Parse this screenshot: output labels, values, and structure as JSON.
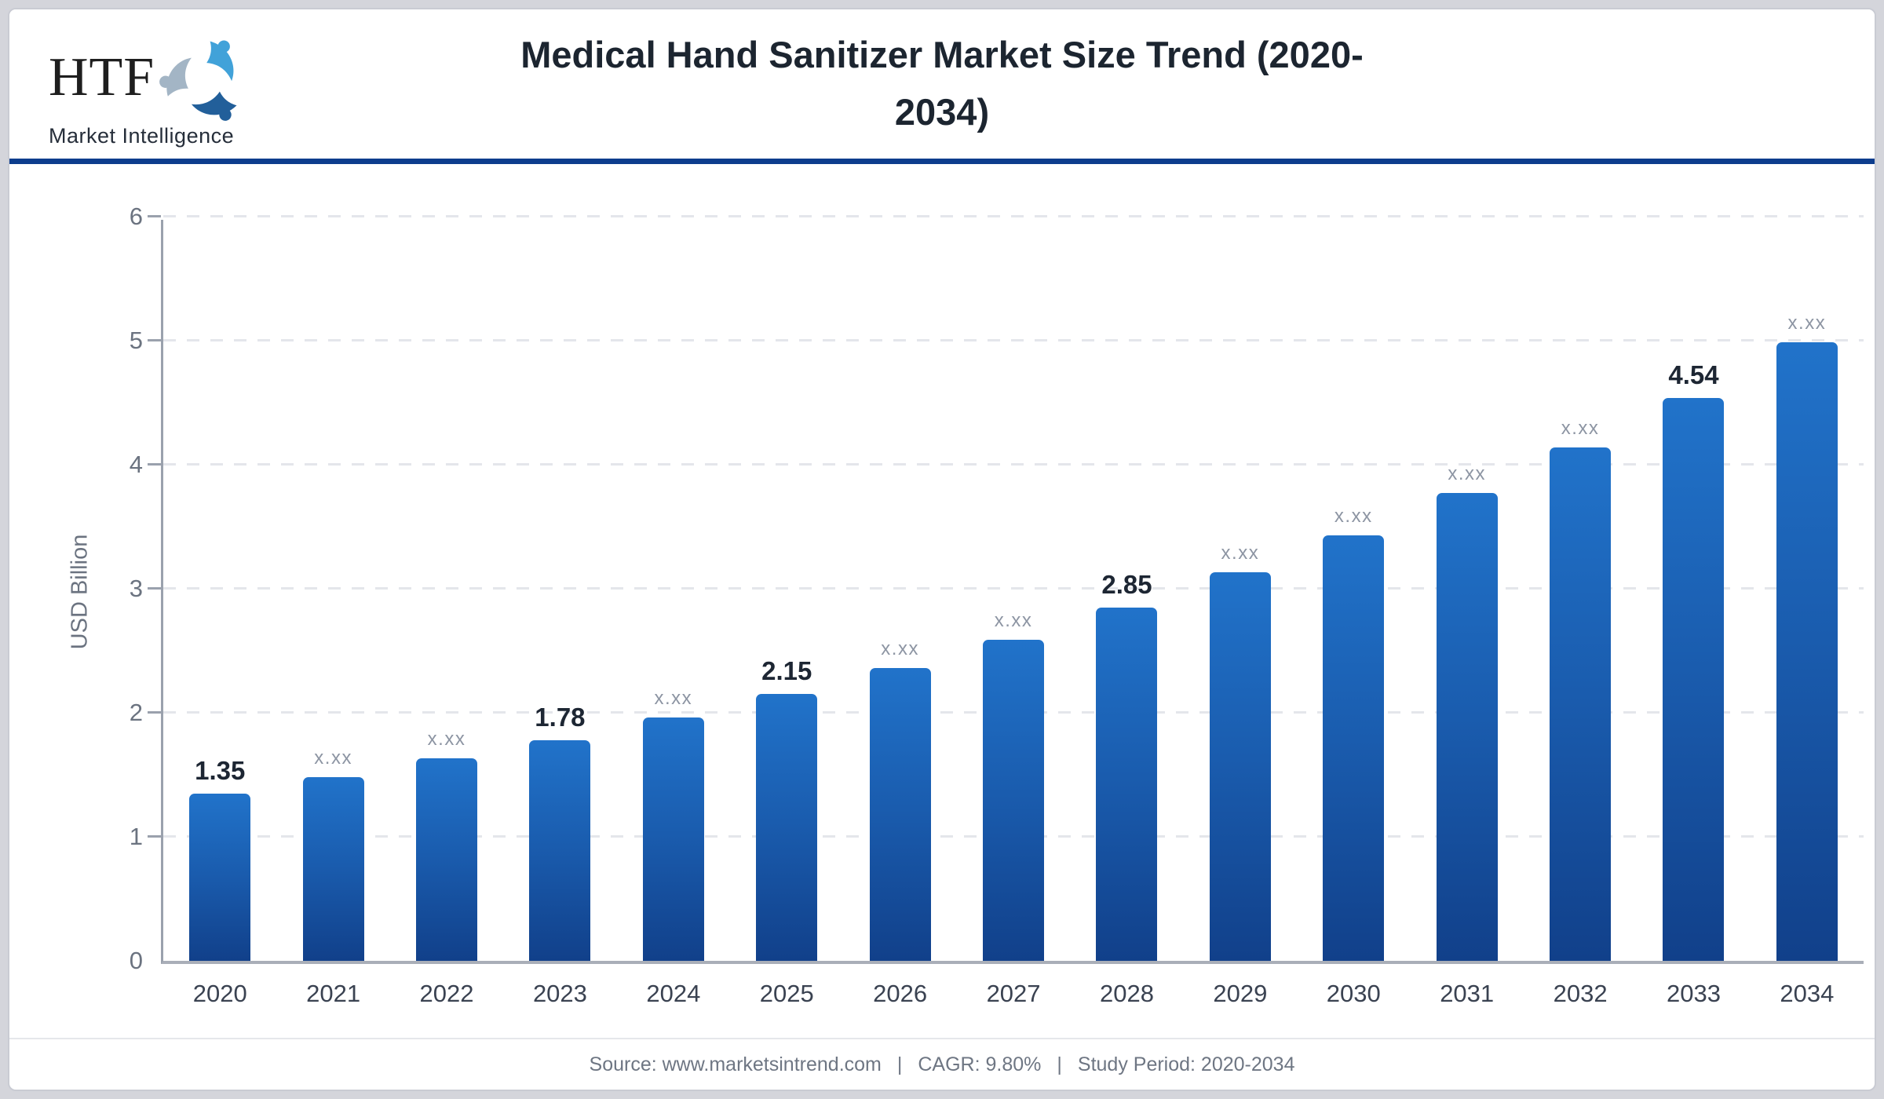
{
  "header": {
    "logo_text": "HTF",
    "logo_subtext": "Market Intelligence",
    "title_line1": "Medical Hand Sanitizer Market Size Trend (2020-",
    "title_line2": "2034)"
  },
  "chart_data": {
    "type": "bar",
    "title": "Medical Hand Sanitizer Market Size Trend (2020-2034)",
    "categories": [
      "2020",
      "2021",
      "2022",
      "2023",
      "2024",
      "2025",
      "2026",
      "2027",
      "2028",
      "2029",
      "2030",
      "2031",
      "2032",
      "2033",
      "2034"
    ],
    "values": [
      1.35,
      1.48,
      1.63,
      1.78,
      1.96,
      2.15,
      2.36,
      2.59,
      2.85,
      3.13,
      3.43,
      3.77,
      4.14,
      4.54,
      4.99
    ],
    "bar_labels": [
      "1.35",
      "x.xx",
      "x.xx",
      "1.78",
      "x.xx",
      "2.15",
      "x.xx",
      "x.xx",
      "2.85",
      "x.xx",
      "x.xx",
      "x.xx",
      "x.xx",
      "4.54",
      "x.xx"
    ],
    "xlabel": "",
    "ylabel": "USD Billion",
    "ylim": [
      0,
      6
    ],
    "yticks": [
      0,
      1,
      2,
      3,
      4,
      5,
      6
    ],
    "grid": "horizontal-dashed",
    "legend": "none",
    "bar_color_top": "#2173ca",
    "bar_color_bottom": "#11408a"
  },
  "footer": {
    "source": "Source: www.marketsintrend.com",
    "separator": "|",
    "cagr": "CAGR: 9.80%",
    "study_period": "Study Period: 2020-2034"
  }
}
